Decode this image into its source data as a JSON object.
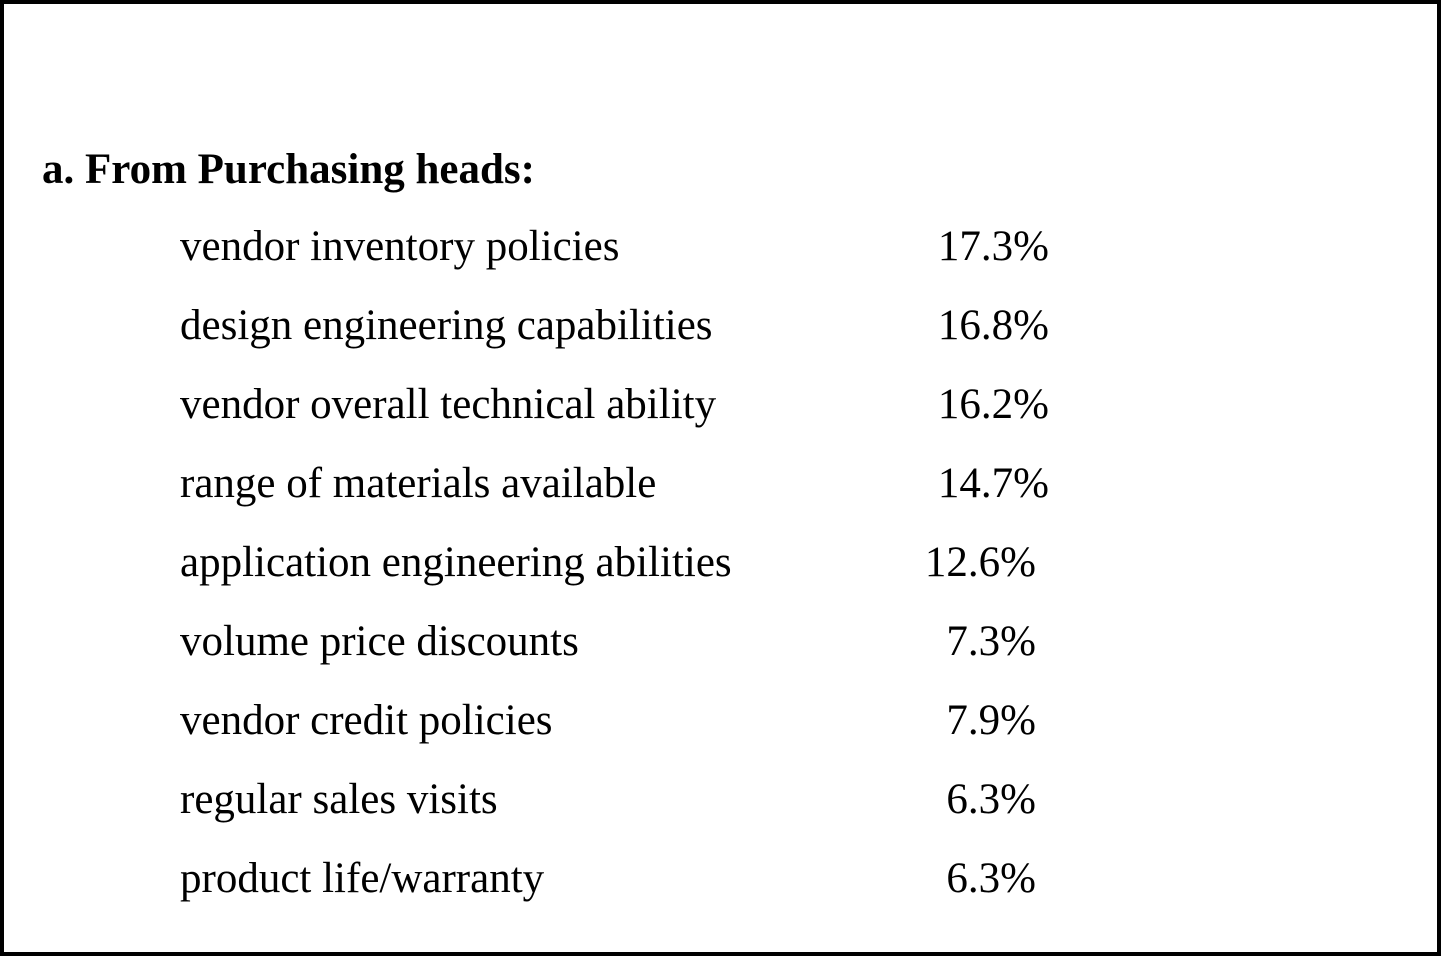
{
  "section": {
    "heading": "a. From Purchasing heads:",
    "rows": [
      {
        "label": "vendor inventory policies",
        "value": "17.3%"
      },
      {
        "label": "design engineering capabilities",
        "value": "16.8%"
      },
      {
        "label": "vendor overall technical ability",
        "value": "16.2%"
      },
      {
        "label": "range of materials available",
        "value": "14.7%"
      },
      {
        "label": "application engineering abilities",
        "value": "12.6%"
      },
      {
        "label": "volume price discounts",
        "value": "7.3%"
      },
      {
        "label": "vendor credit policies",
        "value": "7.9%"
      },
      {
        "label": "regular sales visits",
        "value": "6.3%"
      },
      {
        "label": "product life/warranty",
        "value": "6.3%"
      }
    ]
  }
}
